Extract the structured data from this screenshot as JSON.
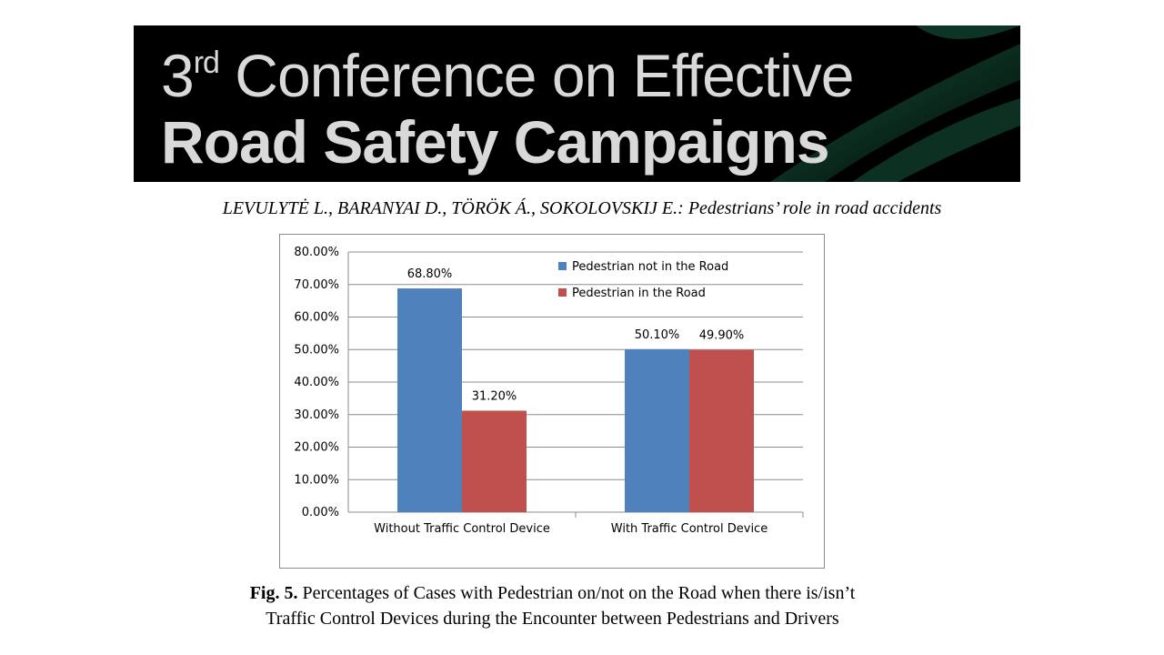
{
  "banner": {
    "line1_prefix": "3",
    "line1_sup": "rd",
    "line1_rest": " Conference on Effective",
    "line2": "Road Safety Campaigns"
  },
  "citation": "LEVULYTĖ L., BARANYAI D., TÖRÖK Á., SOKOLOVSKIJ E.: Pedestrians’ role in road accidents",
  "caption": {
    "label": "Fig. 5.",
    "text_line1": " Percentages of Cases with Pedestrian on/not on the Road when there is/isn’t",
    "text_line2": "Traffic Control Devices during the Encounter between Pedestrians and Drivers"
  },
  "chart_data": {
    "type": "bar",
    "categories": [
      "Without Traffic Control Device",
      "With Traffic Control Device"
    ],
    "series": [
      {
        "name": "Pedestrian not in the Road",
        "values": [
          68.8,
          50.1
        ],
        "labels": [
          "68.80%",
          "50.10%"
        ],
        "color": "#4f81bd"
      },
      {
        "name": "Pedestrian in the Road",
        "values": [
          31.2,
          49.9
        ],
        "labels": [
          "31.20%",
          "49.90%"
        ],
        "color": "#c0504d"
      }
    ],
    "ylim": [
      0,
      80
    ],
    "yticks": [
      "0.00%",
      "10.00%",
      "20.00%",
      "30.00%",
      "40.00%",
      "50.00%",
      "60.00%",
      "70.00%",
      "80.00%"
    ],
    "ytick_values": [
      0,
      10,
      20,
      30,
      40,
      50,
      60,
      70,
      80
    ],
    "grid": true,
    "legend_position": "top-right",
    "title": "",
    "xlabel": "",
    "ylabel": ""
  }
}
